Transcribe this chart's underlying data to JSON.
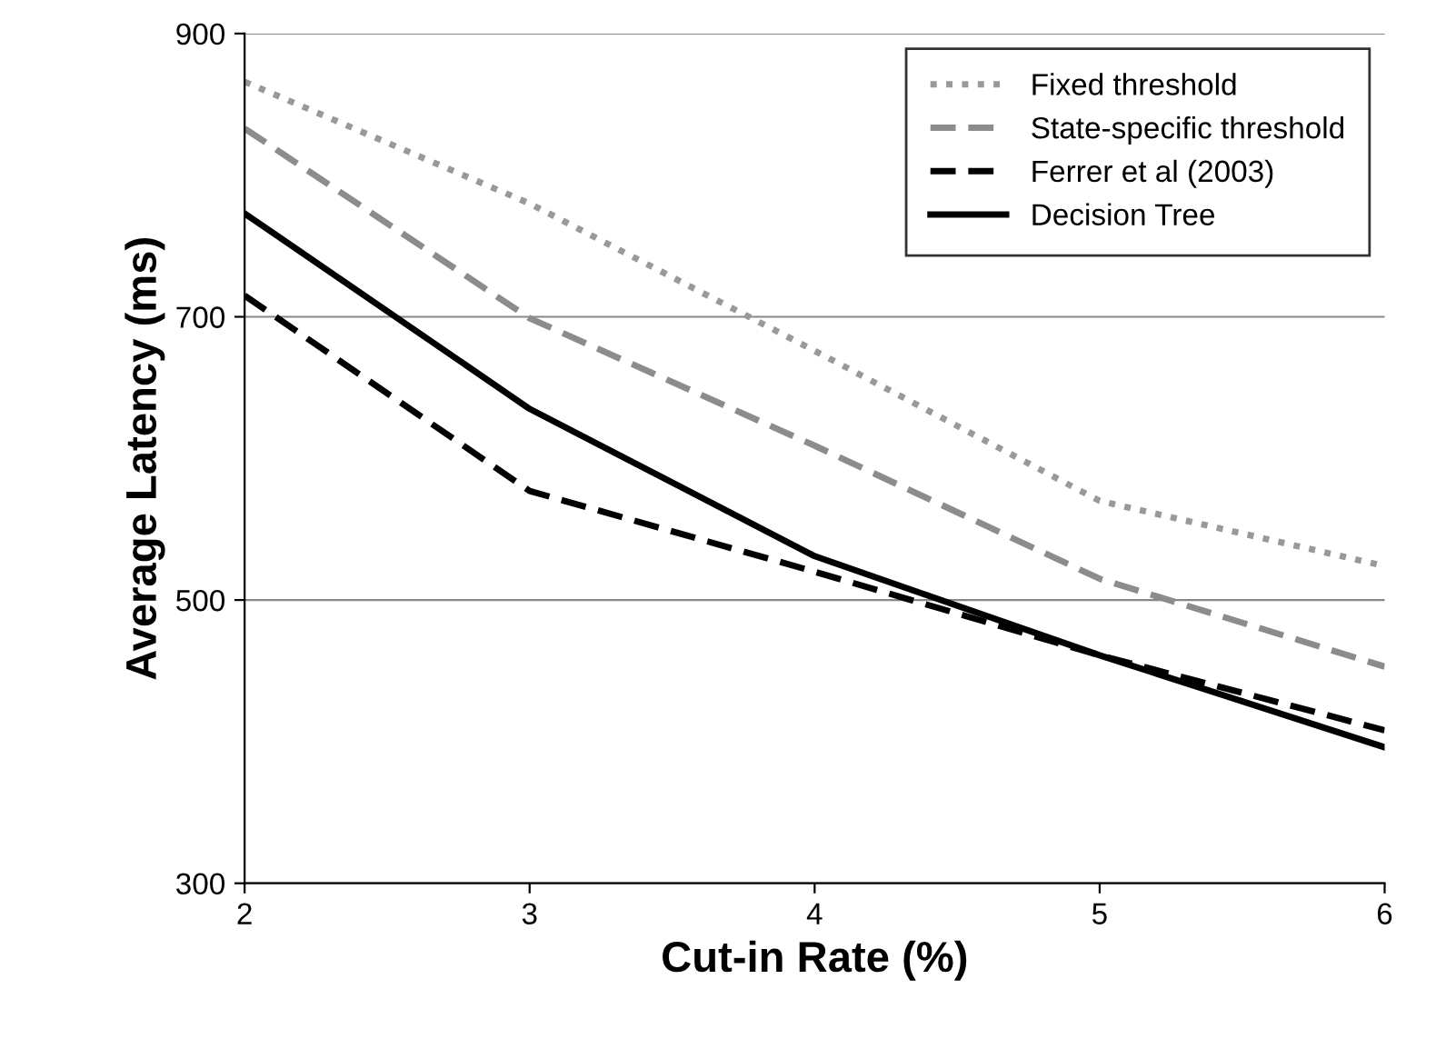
{
  "chart_data": {
    "type": "line",
    "xlabel": "Cut-in Rate (%)",
    "ylabel": "Average Latency (ms)",
    "x": [
      2,
      3,
      4,
      5,
      6
    ],
    "xlim": [
      2,
      6
    ],
    "xticks": [
      2,
      3,
      4,
      5,
      6
    ],
    "ylim": [
      300,
      900
    ],
    "yticks": [
      300,
      500,
      700,
      900
    ],
    "grid": "y",
    "legend": "top right",
    "series": [
      {
        "name": "Fixed threshold",
        "color": "#999999",
        "line_style": "dotted",
        "values": [
          866,
          780,
          676,
          570,
          524
        ]
      },
      {
        "name": "State-specific threshold",
        "color": "#8c8c8c",
        "line_style": "dashed",
        "values": [
          833,
          699,
          609,
          515,
          453
        ]
      },
      {
        "name": "Ferrer et al (2003)",
        "color": "#000000",
        "line_style": "dashed",
        "values": [
          715,
          577,
          520,
          461,
          408
        ]
      },
      {
        "name": "Decision Tree",
        "color": "#000000",
        "line_style": "solid",
        "values": [
          773,
          635,
          531,
          461,
          396
        ]
      }
    ]
  }
}
